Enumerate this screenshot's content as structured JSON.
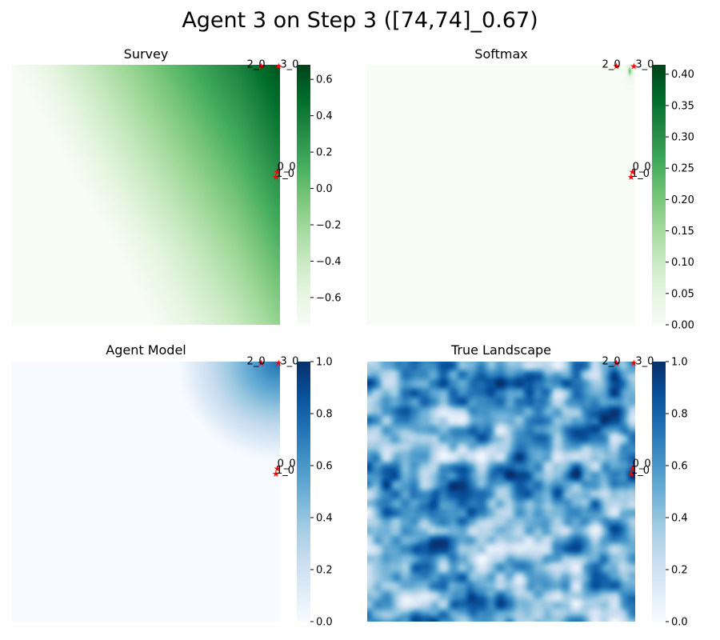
{
  "title": "Agent 3 on Step 3 ([74,74]_0.67)",
  "chart_data": [
    {
      "type": "heatmap",
      "title": "Survey",
      "colormap": "Greens",
      "colorbar": {
        "vmin": -0.75,
        "vmax": 0.68,
        "ticks": [
          -0.6,
          -0.4,
          -0.2,
          0.0,
          0.2,
          0.4,
          0.6
        ],
        "tick_labels": [
          "−0.6",
          "−0.4",
          "−0.2",
          "0.0",
          "0.2",
          "0.4",
          "0.6"
        ]
      },
      "field": "survey",
      "markers": [
        {
          "label": "2_0",
          "x": 0.93,
          "y": 0.005,
          "label_dx": -18
        },
        {
          "label": "3_0",
          "x": 0.995,
          "y": 0.005,
          "label_dx": 2
        },
        {
          "label": "0_0",
          "x": 0.99,
          "y": 0.41,
          "label_dx": 0
        },
        {
          "label": "1_0",
          "x": 0.985,
          "y": 0.43,
          "label_dx": 0
        }
      ]
    },
    {
      "type": "heatmap",
      "title": "Softmax",
      "colormap": "Greens",
      "colorbar": {
        "vmin": 0.0,
        "vmax": 0.415,
        "ticks": [
          0.0,
          0.05,
          0.1,
          0.15,
          0.2,
          0.25,
          0.3,
          0.35,
          0.4
        ],
        "tick_labels": [
          "0.00",
          "0.05",
          "0.10",
          "0.15",
          "0.20",
          "0.25",
          "0.30",
          "0.35",
          "0.40"
        ]
      },
      "field": "softmax",
      "markers": [
        {
          "label": "2_0",
          "x": 0.93,
          "y": 0.005,
          "label_dx": -18
        },
        {
          "label": "3_0",
          "x": 0.995,
          "y": 0.005,
          "label_dx": 2
        },
        {
          "label": "0_0",
          "x": 0.99,
          "y": 0.41,
          "label_dx": 0
        },
        {
          "label": "1_0",
          "x": 0.985,
          "y": 0.43,
          "label_dx": 0
        }
      ]
    },
    {
      "type": "heatmap",
      "title": "Agent Model",
      "colormap": "Blues",
      "colorbar": {
        "vmin": 0.0,
        "vmax": 1.0,
        "ticks": [
          0.0,
          0.2,
          0.4,
          0.6,
          0.8,
          1.0
        ],
        "tick_labels": [
          "0.0",
          "0.2",
          "0.4",
          "0.6",
          "0.8",
          "1.0"
        ]
      },
      "field": "agent_model",
      "markers": [
        {
          "label": "2_0",
          "x": 0.93,
          "y": 0.005,
          "label_dx": -18
        },
        {
          "label": "3_0",
          "x": 0.995,
          "y": 0.005,
          "label_dx": 2
        },
        {
          "label": "0_0",
          "x": 0.99,
          "y": 0.41,
          "label_dx": 0
        },
        {
          "label": "1_0",
          "x": 0.985,
          "y": 0.43,
          "label_dx": 0
        }
      ]
    },
    {
      "type": "heatmap",
      "title": "True Landscape",
      "colormap": "Blues",
      "colorbar": {
        "vmin": 0.0,
        "vmax": 1.0,
        "ticks": [
          0.0,
          0.2,
          0.4,
          0.6,
          0.8,
          1.0
        ],
        "tick_labels": [
          "0.0",
          "0.2",
          "0.4",
          "0.6",
          "0.8",
          "1.0"
        ]
      },
      "field": "true_landscape",
      "markers": [
        {
          "label": "2_0",
          "x": 0.93,
          "y": 0.005,
          "label_dx": -18
        },
        {
          "label": "3_0",
          "x": 0.995,
          "y": 0.005,
          "label_dx": 2
        },
        {
          "label": "0_0",
          "x": 0.99,
          "y": 0.41,
          "label_dx": 0
        },
        {
          "label": "1_0",
          "x": 0.985,
          "y": 0.43,
          "label_dx": 0
        }
      ]
    }
  ]
}
